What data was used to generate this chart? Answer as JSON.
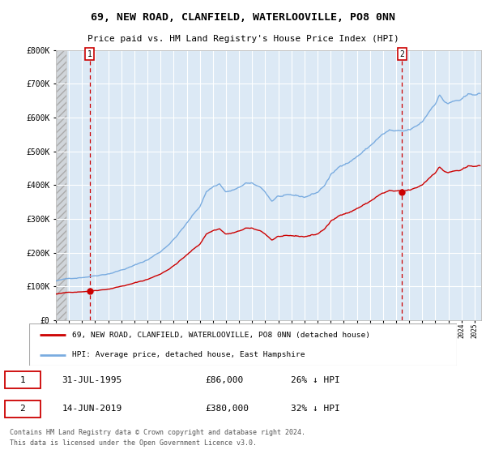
{
  "title1": "69, NEW ROAD, CLANFIELD, WATERLOOVILLE, PO8 0NN",
  "title2": "Price paid vs. HM Land Registry's House Price Index (HPI)",
  "legend_label_red": "69, NEW ROAD, CLANFIELD, WATERLOOVILLE, PO8 0NN (detached house)",
  "legend_label_blue": "HPI: Average price, detached house, East Hampshire",
  "footer": "Contains HM Land Registry data © Crown copyright and database right 2024.\nThis data is licensed under the Open Government Licence v3.0.",
  "point1_label": "1",
  "point1_date": "31-JUL-1995",
  "point1_price": "£86,000",
  "point1_hpi": "26% ↓ HPI",
  "point2_label": "2",
  "point2_date": "14-JUN-2019",
  "point2_price": "£380,000",
  "point2_hpi": "32% ↓ HPI",
  "point1_x": 1995.58,
  "point1_y": 86000,
  "point2_x": 2019.45,
  "point2_y": 380000,
  "vline1_x": 1995.58,
  "vline2_x": 2019.45,
  "ylim": [
    0,
    800000
  ],
  "xlim_start": 1993.0,
  "xlim_end": 2025.5,
  "bg_color": "#dce9f5",
  "red_color": "#cc0000",
  "blue_color": "#7aace0",
  "grid_color": "#ffffff",
  "seed": 42
}
